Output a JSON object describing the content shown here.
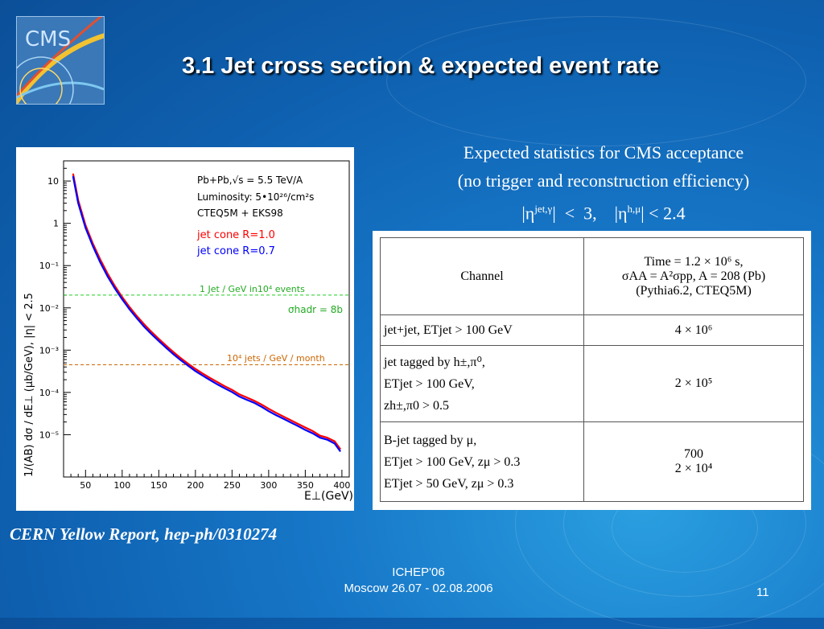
{
  "slide": {
    "title": "3.1 Jet cross section & expected event rate",
    "logo_text": "CMS",
    "citation": "CERN Yellow Report, hep-ph/0310274",
    "footer": {
      "conference": "ICHEP'06",
      "location_dates": "Moscow 26.07 - 02.08.2006",
      "page": "11"
    },
    "colors": {
      "background": "#1268b8",
      "red_curve": "#ff0000",
      "blue_curve": "#0000ff",
      "green_line": "#22cc22",
      "orange_line": "#cc6600"
    }
  },
  "stats": {
    "line1": "Expected statistics for CMS acceptance",
    "line2": "(no trigger and reconstruction efficiency)",
    "eta_jet": "|η",
    "eta_jet_sup": "jet,γ",
    "eta_jet_rest": "|  <  3,    |η",
    "eta_h_sup": "h,μ",
    "eta_h_rest": "| < 2.4"
  },
  "table": {
    "header": {
      "channel": "Channel",
      "time_line1": "Time = 1.2 × 10⁶ s,",
      "time_line2": "σAA = A²σpp, A = 208 (Pb)",
      "time_line3": "(Pythia6.2, CTEQ5M)"
    },
    "rows": [
      {
        "channel": [
          "jet+jet,  ETjet > 100 GeV"
        ],
        "value": [
          "4 × 10⁶"
        ]
      },
      {
        "channel": [
          "jet tagged by h±,π⁰,",
          "ETjet > 100 GeV,",
          "zh±,π0  > 0.5"
        ],
        "value": [
          "2 × 10⁵"
        ]
      },
      {
        "channel": [
          "B-jet tagged by μ,",
          "ETjet > 100 GeV, zμ  > 0.3",
          "ETjet > 50 GeV, zμ  > 0.3"
        ],
        "value": [
          "700",
          "2 × 10⁴"
        ]
      }
    ]
  },
  "chart_data": {
    "type": "line",
    "ylabel": "1/(AB) dσ / dE⊥ (μb/GeV),  |η| < 2.5",
    "xlabel": "E⊥(GeV)",
    "xlim": [
      20,
      410
    ],
    "ylim": [
      1e-06,
      30
    ],
    "yscale": "log",
    "grid": false,
    "x_ticks": [
      50,
      100,
      150,
      200,
      250,
      300,
      350,
      400
    ],
    "y_ticks": [
      {
        "value": 10,
        "label": "10"
      },
      {
        "value": 1,
        "label": "1"
      },
      {
        "value": 0.1,
        "label": "10⁻¹"
      },
      {
        "value": 0.01,
        "label": "10⁻²"
      },
      {
        "value": 0.001,
        "label": "10⁻³"
      },
      {
        "value": 0.0001,
        "label": "10⁻⁴"
      },
      {
        "value": 1e-05,
        "label": "10⁻⁵"
      }
    ],
    "info_text": [
      "Pb+Pb,√s = 5.5 TeV/A",
      "Luminosity: 5•10²⁶/cm²s",
      "CTEQ5M + EKS98"
    ],
    "series": [
      {
        "name": "jet cone  R=1.0",
        "color": "#ff0000",
        "x": [
          33,
          40,
          50,
          60,
          70,
          80,
          90,
          100,
          110,
          120,
          130,
          140,
          150,
          160,
          170,
          180,
          190,
          200,
          210,
          220,
          230,
          240,
          250,
          260,
          270,
          280,
          290,
          300,
          310,
          320,
          330,
          340,
          350,
          360,
          370,
          380,
          390,
          398
        ],
        "y": [
          15,
          3.5,
          0.9,
          0.33,
          0.14,
          0.065,
          0.033,
          0.018,
          0.0105,
          0.0064,
          0.0041,
          0.0027,
          0.00185,
          0.00128,
          0.0009,
          0.00065,
          0.00048,
          0.00036,
          0.00028,
          0.00022,
          0.000175,
          0.00014,
          0.000115,
          9e-05,
          7.6e-05,
          6.4e-05,
          5.2e-05,
          4.1e-05,
          3.3e-05,
          2.7e-05,
          2.2e-05,
          1.8e-05,
          1.48e-05,
          1.22e-05,
          9.5e-06,
          8.5e-06,
          7e-06,
          4.5e-06
        ]
      },
      {
        "name": "jet cone  R=0.7",
        "color": "#0000ff",
        "x": [
          33,
          40,
          50,
          60,
          70,
          80,
          90,
          100,
          110,
          120,
          130,
          140,
          150,
          160,
          170,
          180,
          190,
          200,
          210,
          220,
          230,
          240,
          250,
          260,
          270,
          280,
          290,
          300,
          310,
          320,
          330,
          340,
          350,
          360,
          370,
          380,
          390,
          398
        ],
        "y": [
          13,
          3.0,
          0.78,
          0.29,
          0.12,
          0.056,
          0.029,
          0.016,
          0.0093,
          0.0057,
          0.0036,
          0.0024,
          0.00165,
          0.00114,
          0.0008,
          0.00058,
          0.00043,
          0.00032,
          0.00025,
          0.000195,
          0.000155,
          0.000125,
          0.000102,
          8e-05,
          6.7e-05,
          5.7e-05,
          4.6e-05,
          3.6e-05,
          2.9e-05,
          2.4e-05,
          1.95e-05,
          1.6e-05,
          1.3e-05,
          1.08e-05,
          8.5e-06,
          7.6e-06,
          6.2e-06,
          4e-06
        ]
      }
    ],
    "reference_lines": [
      {
        "label": "1 Jet / GeV in10⁴ events",
        "y": 0.02,
        "color": "#22cc22"
      },
      {
        "label": "10⁴ jets / GeV / month",
        "y": 0.00045,
        "color": "#cc6600"
      }
    ],
    "annotation": {
      "label": "σhadr = 8b",
      "color": "#22cc22"
    }
  }
}
